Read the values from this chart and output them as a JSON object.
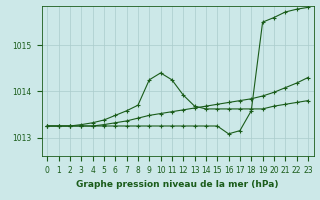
{
  "xlabel": "Graphe pression niveau de la mer (hPa)",
  "bg_color": "#cce8e8",
  "grid_color": "#aacccc",
  "line_color_1": "#1a5c1a",
  "line_color_2": "#1a5c1a",
  "line_color_3": "#1a5c1a",
  "x_ticks": [
    0,
    1,
    2,
    3,
    4,
    5,
    6,
    7,
    8,
    9,
    10,
    11,
    12,
    13,
    14,
    15,
    16,
    17,
    18,
    19,
    20,
    21,
    22,
    23
  ],
  "xlim": [
    -0.5,
    23.5
  ],
  "ylim": [
    1012.6,
    1015.85
  ],
  "yticks": [
    1013,
    1014,
    1015
  ],
  "series1_x": [
    0,
    1,
    2,
    3,
    4,
    5,
    6,
    7,
    8,
    9,
    10,
    11,
    12,
    13,
    14,
    15,
    16,
    17,
    18,
    19,
    20,
    21,
    22,
    23
  ],
  "series1_y": [
    1013.25,
    1013.25,
    1013.25,
    1013.25,
    1013.25,
    1013.28,
    1013.32,
    1013.36,
    1013.42,
    1013.48,
    1013.52,
    1013.56,
    1013.6,
    1013.64,
    1013.68,
    1013.72,
    1013.76,
    1013.8,
    1013.84,
    1013.9,
    1013.98,
    1014.08,
    1014.18,
    1014.3
  ],
  "series2_x": [
    0,
    1,
    2,
    3,
    4,
    5,
    6,
    7,
    8,
    9,
    10,
    11,
    12,
    13,
    14,
    15,
    16,
    17,
    18,
    19,
    20,
    21,
    22,
    23
  ],
  "series2_y": [
    1013.25,
    1013.25,
    1013.25,
    1013.28,
    1013.32,
    1013.38,
    1013.48,
    1013.58,
    1013.7,
    1014.25,
    1014.4,
    1014.25,
    1013.92,
    1013.68,
    1013.62,
    1013.62,
    1013.62,
    1013.62,
    1013.62,
    1013.62,
    1013.68,
    1013.72,
    1013.76,
    1013.8
  ],
  "series3_x": [
    0,
    1,
    2,
    3,
    4,
    5,
    6,
    7,
    8,
    9,
    10,
    11,
    12,
    13,
    14,
    15,
    16,
    17,
    18,
    19,
    20,
    21,
    22,
    23
  ],
  "series3_y": [
    1013.25,
    1013.25,
    1013.25,
    1013.25,
    1013.25,
    1013.25,
    1013.25,
    1013.25,
    1013.25,
    1013.25,
    1013.25,
    1013.25,
    1013.25,
    1013.25,
    1013.25,
    1013.25,
    1013.08,
    1013.15,
    1013.58,
    1015.5,
    1015.6,
    1015.72,
    1015.78,
    1015.82
  ],
  "marker": "+",
  "marker_size": 3,
  "line_width": 0.8,
  "tick_fontsize": 5.5,
  "label_fontsize": 6.5,
  "tick_color": "#1a5c1a",
  "axis_color": "#1a5c1a"
}
